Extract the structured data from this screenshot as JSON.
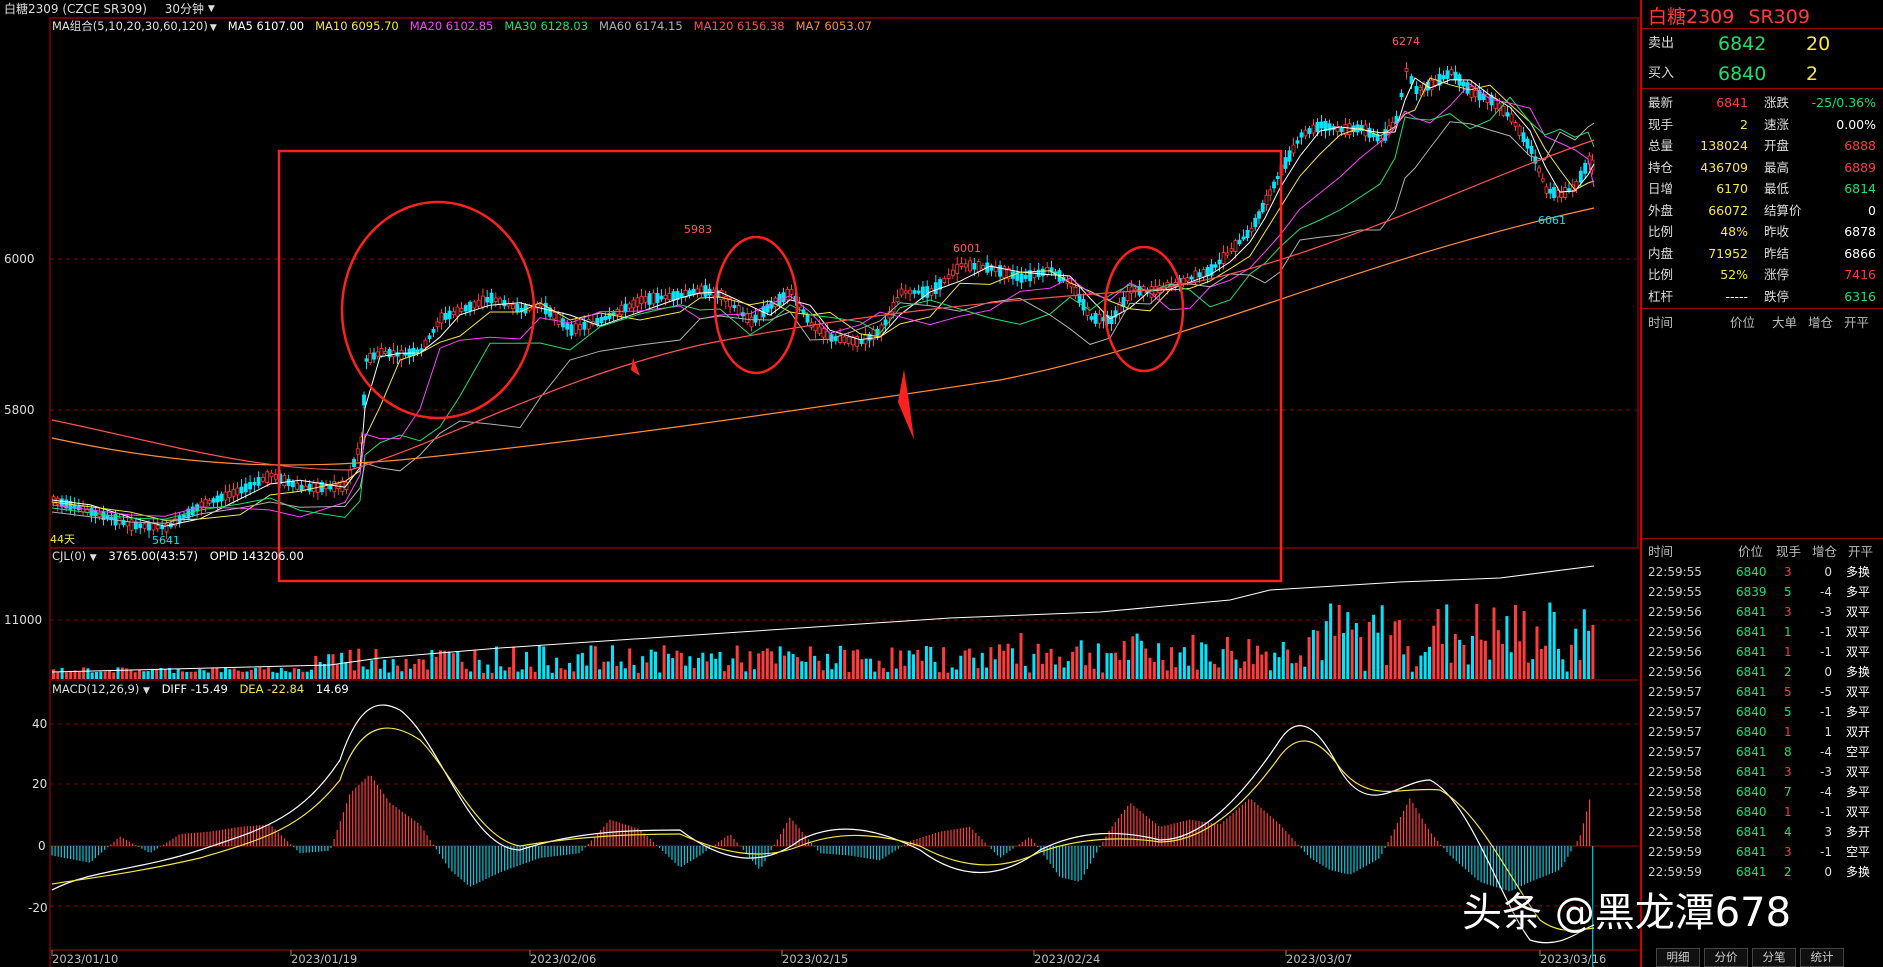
{
  "titlebar": {
    "instrument": "白糖2309 (CZCE SR309)",
    "period": "30分钟",
    "period_chevron": "chevron-down-icon"
  },
  "ma_legend": [
    {
      "text": "MA组合(5,10,20,30,60,120)",
      "color": "#dddddd"
    },
    {
      "text": "MA5 6107.00",
      "color": "#ffffff"
    },
    {
      "text": "MA10 6095.70",
      "color": "#f5e642"
    },
    {
      "text": "MA20 6102.85",
      "color": "#ff40ff"
    },
    {
      "text": "MA30 6128.03",
      "color": "#19e06b"
    },
    {
      "text": "MA60 6174.15",
      "color": "#b0b0b0"
    },
    {
      "text": "MA120 6156.38",
      "color": "#ff5050"
    },
    {
      "text": "MA7 6053.07",
      "color": "#ff8c3a"
    }
  ],
  "price_axis": [
    "6000",
    "5800"
  ],
  "price_annotations": [
    "6274",
    "5983",
    "6001",
    "6061",
    "5641",
    "44天"
  ],
  "volume_legend": {
    "label": "CJL(0)",
    "value": "3765.00(43:57)",
    "opid": "OPID 143206.00"
  },
  "volume_axis": [
    "11000"
  ],
  "macd_legend": {
    "label": "MACD(12,26,9)",
    "diff": "DIFF -15.49",
    "dea": "DEA -22.84",
    "macd": "14.69"
  },
  "macd_axis": [
    "40",
    "20",
    "0",
    "-20"
  ],
  "date_axis": [
    "2023/01/10",
    "2023/01/19",
    "2023/02/06",
    "2023/02/15",
    "2023/02/24",
    "2023/03/07",
    "2023/03/16"
  ],
  "quote": {
    "name": "白糖2309",
    "code": "SR309",
    "sell_label": "卖出",
    "sell_price": "6842",
    "sell_qty": "20",
    "buy_label": "买入",
    "buy_price": "6840",
    "buy_qty": "2",
    "rows": [
      {
        "l1": "最新",
        "v1": "6841",
        "c1": "red",
        "l2": "涨跌",
        "v2": "-25/0.36%",
        "c2": "green"
      },
      {
        "l1": "现手",
        "v1": "2",
        "c1": "yellow",
        "l2": "速涨",
        "v2": "0.00%",
        "c2": "white"
      },
      {
        "l1": "总量",
        "v1": "138024",
        "c1": "yellow",
        "l2": "开盘",
        "v2": "6888",
        "c2": "red"
      },
      {
        "l1": "持仓",
        "v1": "436709",
        "c1": "yellow",
        "l2": "最高",
        "v2": "6889",
        "c2": "red"
      },
      {
        "l1": "日增",
        "v1": "6170",
        "c1": "yellow",
        "l2": "最低",
        "v2": "6814",
        "c2": "green"
      },
      {
        "l1": "外盘",
        "v1": "66072",
        "c1": "yellow",
        "l2": "结算价",
        "v2": "0",
        "c2": "white"
      },
      {
        "l1": "比例",
        "v1": "48%",
        "c1": "yellow",
        "l2": "昨收",
        "v2": "6878",
        "c2": "white"
      },
      {
        "l1": "内盘",
        "v1": "71952",
        "c1": "yellow",
        "l2": "昨结",
        "v2": "6866",
        "c2": "white"
      },
      {
        "l1": "比例",
        "v1": "52%",
        "c1": "yellow",
        "l2": "涨停",
        "v2": "7416",
        "c2": "red"
      },
      {
        "l1": "杠杆",
        "v1": "-----",
        "c1": "white",
        "l2": "跌停",
        "v2": "6316",
        "c2": "green"
      }
    ]
  },
  "ticks_header": [
    "时间",
    "价位",
    "大单",
    "增仓",
    "开平"
  ],
  "trades_header": [
    "时间",
    "价位",
    "现手",
    "增仓",
    "开平"
  ],
  "trades": [
    {
      "time": "22:59:55",
      "price": "6840",
      "qty": "3",
      "chg": "0",
      "type": "多换"
    },
    {
      "time": "22:59:55",
      "price": "6839",
      "qty": "5",
      "chg": "-4",
      "type": "多平"
    },
    {
      "time": "22:59:56",
      "price": "6841",
      "qty": "3",
      "chg": "-3",
      "type": "双平"
    },
    {
      "time": "22:59:56",
      "price": "6841",
      "qty": "1",
      "chg": "-1",
      "type": "双平"
    },
    {
      "time": "22:59:56",
      "price": "6841",
      "qty": "1",
      "chg": "-1",
      "type": "双平"
    },
    {
      "time": "22:59:56",
      "price": "6841",
      "qty": "2",
      "chg": "0",
      "type": "多换"
    },
    {
      "time": "22:59:57",
      "price": "6841",
      "qty": "5",
      "chg": "-5",
      "type": "双平"
    },
    {
      "time": "22:59:57",
      "price": "6840",
      "qty": "5",
      "chg": "-1",
      "type": "多平"
    },
    {
      "time": "22:59:57",
      "price": "6840",
      "qty": "1",
      "chg": "1",
      "type": "双开"
    },
    {
      "time": "22:59:57",
      "price": "6841",
      "qty": "8",
      "chg": "-4",
      "type": "空平"
    },
    {
      "time": "22:59:58",
      "price": "6841",
      "qty": "3",
      "chg": "-3",
      "type": "双平"
    },
    {
      "time": "22:59:58",
      "price": "6840",
      "qty": "7",
      "chg": "-4",
      "type": "多平"
    },
    {
      "time": "22:59:58",
      "price": "6840",
      "qty": "1",
      "chg": "-1",
      "type": "双平"
    },
    {
      "time": "22:59:58",
      "price": "6841",
      "qty": "4",
      "chg": "3",
      "type": "多开"
    },
    {
      "time": "22:59:59",
      "price": "6841",
      "qty": "3",
      "chg": "-1",
      "type": "空平"
    },
    {
      "time": "22:59:59",
      "price": "6841",
      "qty": "2",
      "chg": "0",
      "type": "多换"
    }
  ],
  "tabs": [
    "明细",
    "分价",
    "分笔",
    "统计"
  ],
  "watermark": "头条 @黑龙潭678",
  "colors": {
    "up": "#ff3b3b",
    "down": "#00e5ff",
    "grid": "#7a0000",
    "frame": "#c00000",
    "annot": "#ff2020"
  }
}
